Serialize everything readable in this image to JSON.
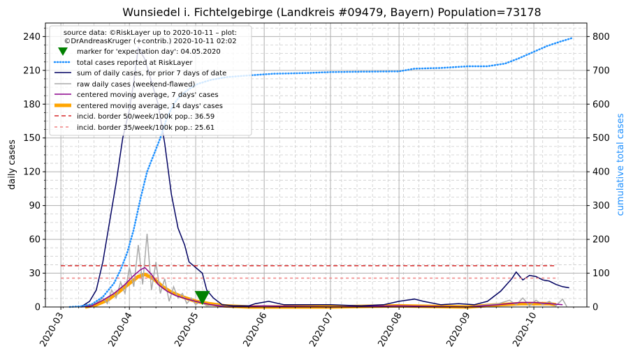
{
  "chart_data": {
    "type": "line",
    "title": "Wunsiedel i. Fichtelgebirge (Landkreis #09479, Bayern) Population=73178",
    "ylabel": "daily cases",
    "y2label": "cumulative total cases",
    "ylim": [
      0,
      252
    ],
    "y2lim": [
      0,
      840
    ],
    "yticks": [
      0,
      30,
      60,
      90,
      120,
      150,
      180,
      210,
      240
    ],
    "y2ticks": [
      0,
      100,
      200,
      300,
      400,
      500,
      600,
      700,
      800
    ],
    "xlim": [
      "2020-02-23",
      "2020-10-25"
    ],
    "xticks": [
      "2020-03",
      "2020-04",
      "2020-05",
      "2020-06",
      "2020-07",
      "2020-08",
      "2020-09",
      "2020-10"
    ],
    "xtick_dates": [
      "2020-03-01",
      "2020-04-01",
      "2020-05-01",
      "2020-06-01",
      "2020-07-01",
      "2020-08-01",
      "2020-09-01",
      "2020-10-01"
    ],
    "grid": true,
    "legend_position": "top-left",
    "legend_title_lines": [
      "source data: ©RiskLayer up to 2020-10-11 – plot:",
      "©DrAndreasKruger (+contrib.) 2020-10-11 02:02"
    ],
    "legend_entries": [
      "marker for 'expectation day': 04.05.2020",
      "total cases reported at RiskLayer",
      "sum of daily cases, for prior 7 days of date",
      "raw daily cases (weekend-flawed)",
      "centered moving average, 7 days' cases",
      "centered moving average, 14 days' cases",
      "incid. border 50/week/100k pop.: 36.59",
      "incid. border 35/week/100k pop.: 25.61"
    ],
    "colors": {
      "marker": "#008000",
      "cumulative": "#1e90ff",
      "sum7": "#000060",
      "raw": "#a9a9a9",
      "ma7": "#8b008b",
      "ma14": "#ffa500",
      "border50": "#d62728",
      "border35": "#f08080",
      "y2label": "#1e90ff"
    },
    "expectation_day": {
      "date": "2020-05-04",
      "value": 8
    },
    "incid_border_50": {
      "value": 36.59,
      "from": "2020-03-01",
      "to": "2020-10-11"
    },
    "incid_border_35": {
      "value": 25.61,
      "from": "2020-03-01",
      "to": "2020-10-11"
    },
    "series": {
      "cumulative": [
        [
          "2020-03-05",
          0
        ],
        [
          "2020-03-10",
          2
        ],
        [
          "2020-03-15",
          8
        ],
        [
          "2020-03-20",
          30
        ],
        [
          "2020-03-25",
          70
        ],
        [
          "2020-03-28",
          110
        ],
        [
          "2020-03-31",
          160
        ],
        [
          "2020-04-03",
          230
        ],
        [
          "2020-04-06",
          320
        ],
        [
          "2020-04-09",
          400
        ],
        [
          "2020-04-12",
          450
        ],
        [
          "2020-04-15",
          500
        ],
        [
          "2020-04-18",
          560
        ],
        [
          "2020-04-21",
          600
        ],
        [
          "2020-04-24",
          625
        ],
        [
          "2020-04-28",
          645
        ],
        [
          "2020-05-02",
          660
        ],
        [
          "2020-05-08",
          672
        ],
        [
          "2020-05-15",
          680
        ],
        [
          "2020-05-25",
          685
        ],
        [
          "2020-06-05",
          690
        ],
        [
          "2020-06-20",
          692
        ],
        [
          "2020-07-01",
          695
        ],
        [
          "2020-07-15",
          696
        ],
        [
          "2020-08-01",
          697
        ],
        [
          "2020-08-08",
          705
        ],
        [
          "2020-08-20",
          707
        ],
        [
          "2020-09-01",
          712
        ],
        [
          "2020-09-10",
          712
        ],
        [
          "2020-09-18",
          720
        ],
        [
          "2020-09-24",
          735
        ],
        [
          "2020-10-01",
          755
        ],
        [
          "2020-10-07",
          772
        ],
        [
          "2020-10-13",
          785
        ],
        [
          "2020-10-18",
          795
        ]
      ],
      "sum7": [
        [
          "2020-03-10",
          0
        ],
        [
          "2020-03-14",
          5
        ],
        [
          "2020-03-17",
          15
        ],
        [
          "2020-03-20",
          40
        ],
        [
          "2020-03-23",
          75
        ],
        [
          "2020-03-26",
          110
        ],
        [
          "2020-03-29",
          150
        ],
        [
          "2020-04-01",
          175
        ],
        [
          "2020-04-03",
          200
        ],
        [
          "2020-04-05",
          230
        ],
        [
          "2020-04-08",
          220
        ],
        [
          "2020-04-11",
          200
        ],
        [
          "2020-04-14",
          180
        ],
        [
          "2020-04-17",
          145
        ],
        [
          "2020-04-20",
          100
        ],
        [
          "2020-04-23",
          70
        ],
        [
          "2020-04-26",
          55
        ],
        [
          "2020-04-28",
          40
        ],
        [
          "2020-05-01",
          35
        ],
        [
          "2020-05-04",
          30
        ],
        [
          "2020-05-06",
          15
        ],
        [
          "2020-05-09",
          8
        ],
        [
          "2020-05-13",
          2
        ],
        [
          "2020-05-18",
          1
        ],
        [
          "2020-05-25",
          1
        ],
        [
          "2020-05-28",
          3
        ],
        [
          "2020-06-03",
          5
        ],
        [
          "2020-06-10",
          2
        ],
        [
          "2020-06-20",
          2
        ],
        [
          "2020-07-01",
          2
        ],
        [
          "2020-07-15",
          1
        ],
        [
          "2020-07-25",
          2
        ],
        [
          "2020-08-01",
          5
        ],
        [
          "2020-08-08",
          7
        ],
        [
          "2020-08-12",
          5
        ],
        [
          "2020-08-20",
          2
        ],
        [
          "2020-08-28",
          3
        ],
        [
          "2020-09-04",
          2
        ],
        [
          "2020-09-10",
          5
        ],
        [
          "2020-09-16",
          14
        ],
        [
          "2020-09-21",
          25
        ],
        [
          "2020-09-23",
          31
        ],
        [
          "2020-09-26",
          24
        ],
        [
          "2020-09-29",
          28
        ],
        [
          "2020-10-02",
          27
        ],
        [
          "2020-10-05",
          24
        ],
        [
          "2020-10-08",
          23
        ],
        [
          "2020-10-11",
          20
        ],
        [
          "2020-10-14",
          18
        ],
        [
          "2020-10-17",
          17
        ]
      ],
      "raw": [
        [
          "2020-03-10",
          0
        ],
        [
          "2020-03-15",
          1
        ],
        [
          "2020-03-18",
          5
        ],
        [
          "2020-03-20",
          8
        ],
        [
          "2020-03-22",
          3
        ],
        [
          "2020-03-24",
          15
        ],
        [
          "2020-03-26",
          8
        ],
        [
          "2020-03-28",
          22
        ],
        [
          "2020-03-30",
          12
        ],
        [
          "2020-04-01",
          35
        ],
        [
          "2020-04-03",
          18
        ],
        [
          "2020-04-05",
          55
        ],
        [
          "2020-04-07",
          20
        ],
        [
          "2020-04-09",
          65
        ],
        [
          "2020-04-11",
          15
        ],
        [
          "2020-04-13",
          40
        ],
        [
          "2020-04-15",
          12
        ],
        [
          "2020-04-17",
          25
        ],
        [
          "2020-04-19",
          5
        ],
        [
          "2020-04-21",
          18
        ],
        [
          "2020-04-23",
          8
        ],
        [
          "2020-04-25",
          12
        ],
        [
          "2020-04-27",
          3
        ],
        [
          "2020-04-29",
          8
        ],
        [
          "2020-05-01",
          2
        ],
        [
          "2020-05-03",
          5
        ],
        [
          "2020-05-06",
          1
        ],
        [
          "2020-05-10",
          2
        ],
        [
          "2020-05-15",
          0
        ],
        [
          "2020-06-01",
          1
        ],
        [
          "2020-07-01",
          0
        ],
        [
          "2020-08-01",
          1
        ],
        [
          "2020-09-01",
          0
        ],
        [
          "2020-09-15",
          3
        ],
        [
          "2020-09-20",
          6
        ],
        [
          "2020-09-23",
          2
        ],
        [
          "2020-09-26",
          8
        ],
        [
          "2020-09-29",
          1
        ],
        [
          "2020-10-02",
          6
        ],
        [
          "2020-10-05",
          2
        ],
        [
          "2020-10-08",
          5
        ],
        [
          "2020-10-11",
          1
        ],
        [
          "2020-10-14",
          7
        ],
        [
          "2020-10-16",
          0
        ]
      ],
      "ma7": [
        [
          "2020-03-10",
          0
        ],
        [
          "2020-03-15",
          1
        ],
        [
          "2020-03-20",
          6
        ],
        [
          "2020-03-25",
          12
        ],
        [
          "2020-03-30",
          20
        ],
        [
          "2020-04-03",
          28
        ],
        [
          "2020-04-06",
          33
        ],
        [
          "2020-04-08",
          35
        ],
        [
          "2020-04-11",
          29
        ],
        [
          "2020-04-14",
          20
        ],
        [
          "2020-04-18",
          14
        ],
        [
          "2020-04-22",
          10
        ],
        [
          "2020-04-27",
          7
        ],
        [
          "2020-05-03",
          4
        ],
        [
          "2020-05-08",
          2
        ],
        [
          "2020-05-15",
          0
        ],
        [
          "2020-06-01",
          1
        ],
        [
          "2020-07-01",
          0
        ],
        [
          "2020-08-01",
          1
        ],
        [
          "2020-09-01",
          0
        ],
        [
          "2020-09-15",
          2
        ],
        [
          "2020-09-25",
          4
        ],
        [
          "2020-10-01",
          4
        ],
        [
          "2020-10-08",
          3
        ],
        [
          "2020-10-14",
          2
        ]
      ],
      "ma14": [
        [
          "2020-03-12",
          0
        ],
        [
          "2020-03-17",
          2
        ],
        [
          "2020-03-22",
          6
        ],
        [
          "2020-03-27",
          13
        ],
        [
          "2020-04-01",
          21
        ],
        [
          "2020-04-05",
          27
        ],
        [
          "2020-04-08",
          29
        ],
        [
          "2020-04-12",
          25
        ],
        [
          "2020-04-16",
          18
        ],
        [
          "2020-04-20",
          13
        ],
        [
          "2020-04-25",
          9
        ],
        [
          "2020-05-01",
          5
        ],
        [
          "2020-05-07",
          3
        ],
        [
          "2020-05-14",
          1
        ],
        [
          "2020-05-25",
          0
        ],
        [
          "2020-07-01",
          0
        ],
        [
          "2020-08-01",
          1
        ],
        [
          "2020-09-01",
          0
        ],
        [
          "2020-09-15",
          2
        ],
        [
          "2020-09-25",
          3
        ],
        [
          "2020-10-01",
          3
        ],
        [
          "2020-10-08",
          3
        ],
        [
          "2020-10-11",
          2
        ]
      ]
    }
  }
}
